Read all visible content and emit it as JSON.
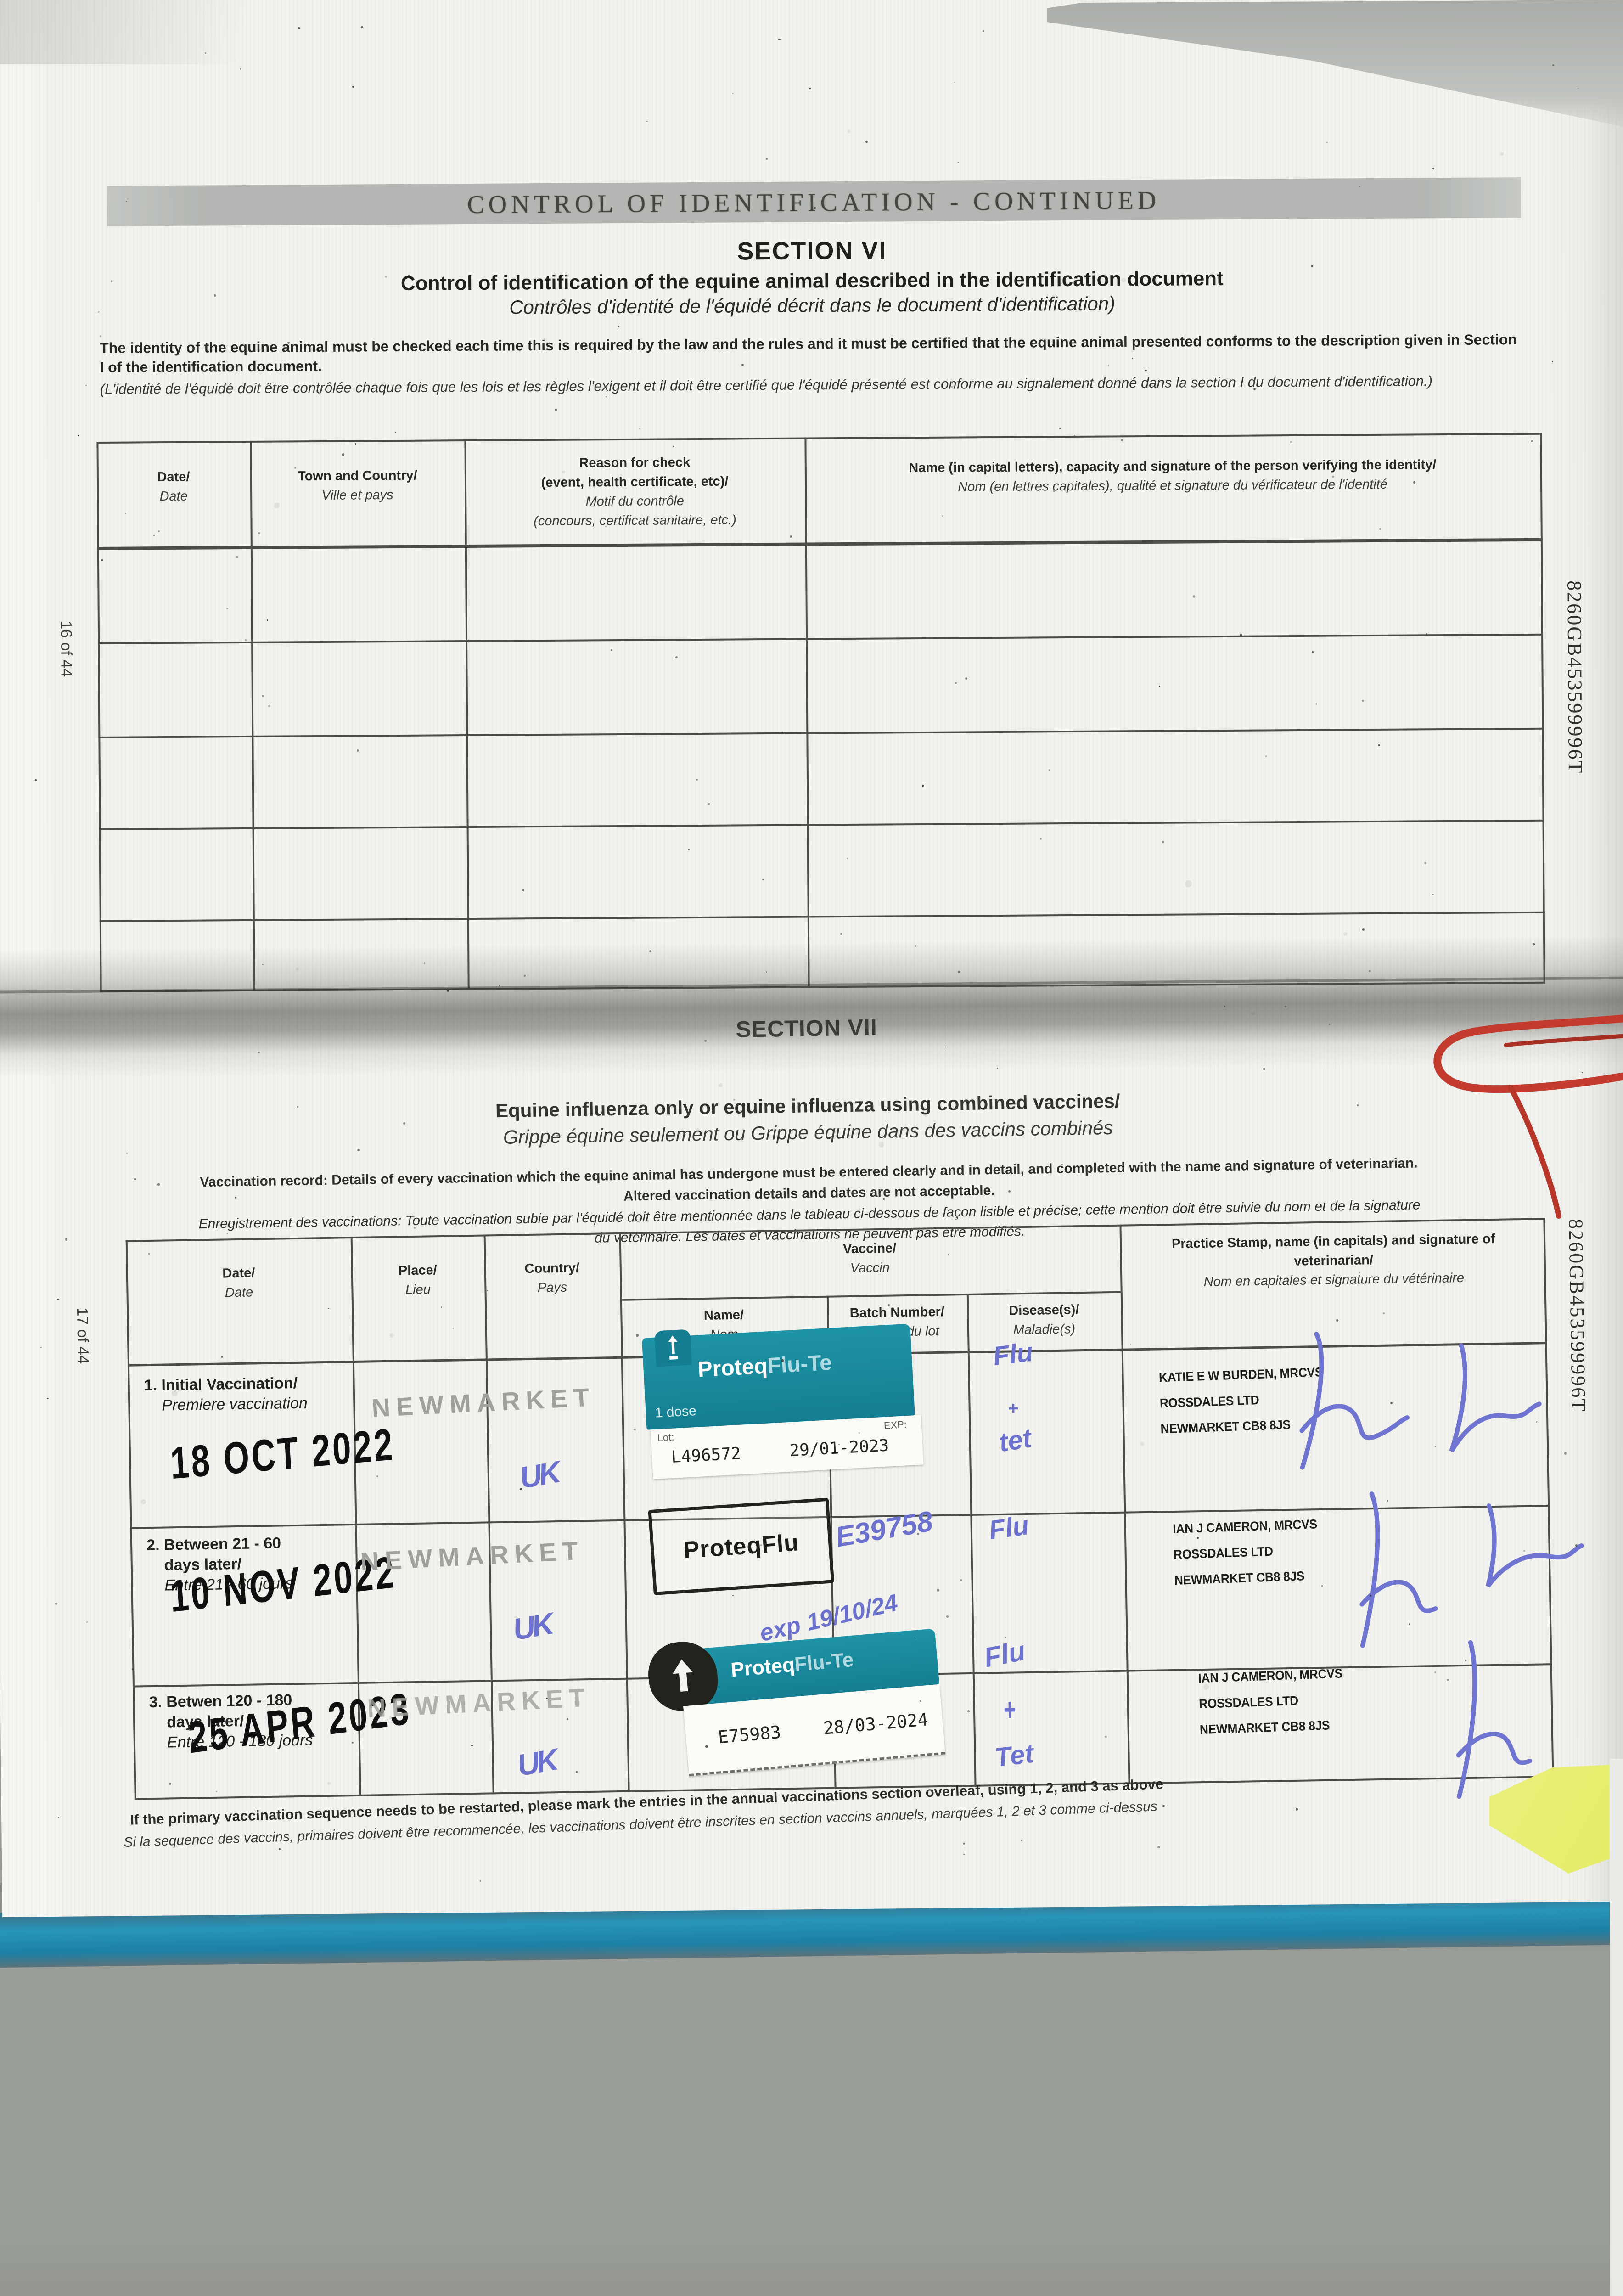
{
  "document": {
    "banner": "CONTROL OF IDENTIFICATION - CONTINUED",
    "section6": {
      "heading": "SECTION VI",
      "title_en": "Control of identification of the equine animal described in the identification document",
      "title_fr": "Contrôles d'identité de l'équidé décrit dans le document d'identification)",
      "intro_en": "The identity of the equine animal must be checked each time this is required by the law and the rules and it must be certified that the equine animal presented conforms to the description given in Section I of the identification document.",
      "intro_fr": "(L'identité de l'équidé doit être contrôlée chaque fois que les lois et les règles l'exigent et il doit être certifié que l'équidé présenté est conforme au signalement donné dans la section I du document d'identification.)",
      "page_number": "16 of 44",
      "doc_code": "8260GB453599996T",
      "table": {
        "col_date_en": "Date/",
        "col_date_fr": "Date",
        "col_town_en": "Town and Country/",
        "col_town_fr": "Ville et pays",
        "col_reason_en": "Reason for check",
        "col_reason_en2": "(event, health certificate, etc)/",
        "col_reason_fr": "Motif du contrôle",
        "col_reason_fr2": "(concours, certificat sanitaire, etc.)",
        "col_name_en": "Name (in capital letters), capacity and signature of the person verifying the identity/",
        "col_name_fr": "Nom (en lettres capitales), qualité et signature du vérificateur de l'identité"
      }
    },
    "section7": {
      "heading": "SECTION VII",
      "title_en": "Equine influenza only or equine influenza using combined vaccines/",
      "title_fr": "Grippe équine seulement ou Grippe équine dans des vaccins combinés",
      "intro_en1": "Vaccination record: Details of every vaccination which the equine animal has undergone must be entered clearly and in detail, and completed with the name and signature of veterinarian.",
      "intro_en2": "Altered vaccination details and dates are not acceptable.",
      "intro_fr1": "Enregistrement des vaccinations: Toute vaccination subie par l'équidé doit être mentionnée dans le tableau ci-dessous de façon lisible et précise; cette mention doit être suivie du nom et de la signature",
      "intro_fr2": "du vétérinaire. Les dates et vaccinations ne peuvent pas être modifiés.",
      "page_number": "17 of 44",
      "doc_code": "8260GB453599996T",
      "footer_en": "If the primary vaccination sequence needs to be restarted, please mark the entries in the annual vaccinations section overleaf, using 1, 2, and 3 as above",
      "footer_fr": "Si la sequence des vaccins, primaires doivent être recommencée, les vaccinations doivent être inscrites en section vaccins annuels, marquées 1, 2 et 3 comme ci-dessus",
      "table": {
        "col_date_en": "Date/",
        "col_date_fr": "Date",
        "col_place_en": "Place/",
        "col_place_fr": "Lieu",
        "col_country_en": "Country/",
        "col_country_fr": "Pays",
        "col_vaccine_en": "Vaccine/",
        "col_vaccine_fr": "Vaccin",
        "col_name_en": "Name/",
        "col_name_fr": "Nom",
        "col_batch_en": "Batch Number/",
        "col_batch_fr": "Numéro du lot",
        "col_disease_en": "Disease(s)/",
        "col_disease_fr": "Maladie(s)",
        "col_stamp_en": "Practice Stamp, name (in capitals) and signature of veterinarian/",
        "col_stamp_fr": "Nom en capitales et signature du vétérinaire",
        "rows": [
          {
            "label1": "1. Initial Vaccination/",
            "label_fr": "Premiere vaccination",
            "date_stamp": "18 OCT 2022",
            "place_stamp": "NEWMARKET",
            "country_ink": "UK",
            "sticker_brand": "Proteq",
            "sticker_brand2": "Flu-Te",
            "sticker_dose": "1 dose",
            "sticker_lot_label": "Lot:",
            "sticker_exp_label": "EXP:",
            "sticker_lot": "L496572",
            "sticker_exp": "29/01-2023",
            "disease_ink": [
              "Flu",
              "+",
              "tet"
            ],
            "stamp_lines": [
              "KATIE E W BURDEN, MRCVS",
              "ROSSDALES LTD",
              "NEWMARKET CB8 8JS"
            ]
          },
          {
            "label1": "2. Between 21 - 60",
            "label2": "days later/",
            "label_fr": "Entre 21 - 60 jours",
            "date_stamp": "10 NOV 2022",
            "place_stamp": "NEWMARKET",
            "country_ink": "UK",
            "vaccine_stamp": "ProteqFlu",
            "batch_ink1": "E39758",
            "batch_ink2": "exp 19/10/24",
            "disease_ink": [
              "Flu"
            ],
            "stamp_lines": [
              "IAN J CAMERON, MRCVS",
              "ROSSDALES LTD",
              "NEWMARKET CB8 8JS"
            ]
          },
          {
            "label1": "3. Betwen 120 - 180",
            "label2": "days later/",
            "label_fr": "Entre 120 - 180 jours",
            "date_stamp": "25 APR 2023",
            "place_stamp": "NEWMARKET",
            "country_ink": "UK",
            "sticker_brand": "Proteq",
            "sticker_brand2": "Flu-Te",
            "sticker_lot": "E75983",
            "sticker_exp": "28/03-2024",
            "disease_ink": [
              "Flu",
              "+",
              "Tet"
            ],
            "stamp_lines": [
              "IAN J CAMERON, MRCVS",
              "ROSSDALES LTD",
              "NEWMARKET CB8 8JS"
            ]
          }
        ]
      }
    },
    "colors": {
      "ink_blue": "#6c71ce",
      "sticker_teal": "#1a8ea1",
      "banner_gray": "#b5b8b4",
      "paperclip_red": "#c23b2e",
      "tab_yellow": "#e9ef78",
      "page_edge_teal": "#2795ba"
    }
  }
}
